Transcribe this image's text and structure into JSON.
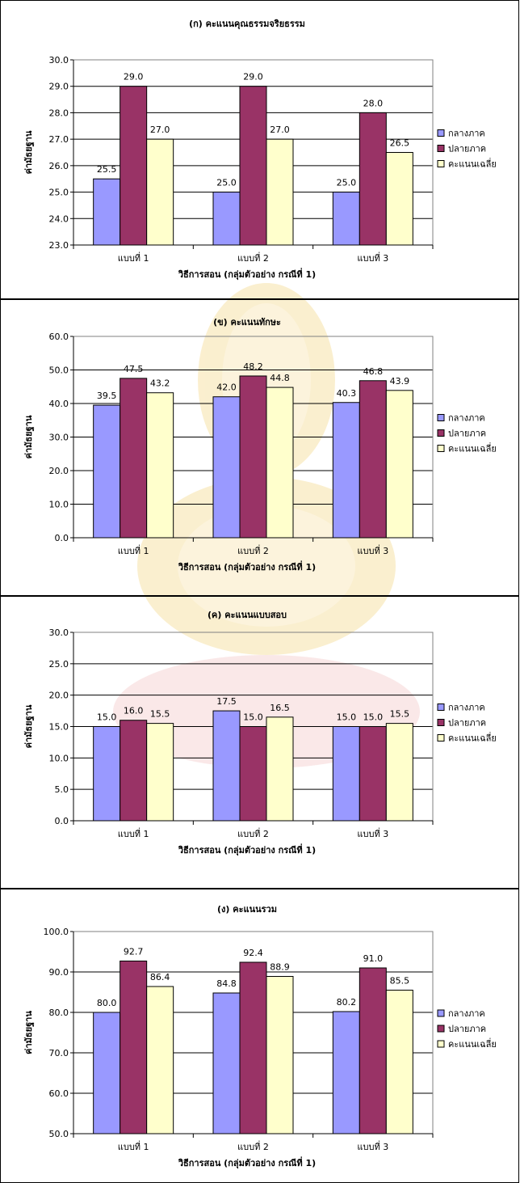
{
  "colors": {
    "series": [
      "#9999FF",
      "#993366",
      "#FFFFCC"
    ],
    "watermark": "#F7E2A8",
    "watermark_text": "#F8D8DC"
  },
  "chart_data": [
    {
      "type": "bar",
      "title": "(ก) คะแนนคุณธรรมจริยธรรม",
      "xlabel": "วิธีการสอน (กลุ่มตัวอย่าง กรณีที่ 1)",
      "ylabel": "ค่ามัธยฐาน",
      "categories": [
        "แบบที่ 1",
        "แบบที่ 2",
        "แบบที่ 3"
      ],
      "ylim": [
        23.0,
        30.0
      ],
      "ystep": 1.0,
      "yticks": [
        "23.0",
        "24.0",
        "25.0",
        "26.0",
        "27.0",
        "28.0",
        "29.0",
        "30.0"
      ],
      "legend": "right",
      "grid": true,
      "series": [
        {
          "name": "กลางภาค",
          "values": [
            25.5,
            25.0,
            25.0
          ],
          "labels": [
            "25.5",
            "25.0",
            "25.0"
          ]
        },
        {
          "name": "ปลายภาค",
          "values": [
            29.0,
            29.0,
            28.0
          ],
          "labels": [
            "29.0",
            "29.0",
            "28.0"
          ]
        },
        {
          "name": "คะแนนเฉลี่ย",
          "values": [
            27.0,
            27.0,
            26.5
          ],
          "labels": [
            "27.0",
            "27.0",
            "26.5"
          ]
        }
      ]
    },
    {
      "type": "bar",
      "title": "(ข) คะแนนทักษะ",
      "xlabel": "วิธีการสอน (กลุ่มตัวอย่าง กรณีที่ 1)",
      "ylabel": "ค่ามัธยฐาน",
      "categories": [
        "แบบที่ 1",
        "แบบที่ 2",
        "แบบที่ 3"
      ],
      "ylim": [
        0.0,
        60.0
      ],
      "ystep": 10.0,
      "yticks": [
        "0.0",
        "10.0",
        "20.0",
        "30.0",
        "40.0",
        "50.0",
        "60.0"
      ],
      "legend": "right",
      "grid": true,
      "series": [
        {
          "name": "กลางภาค",
          "values": [
            39.5,
            42.0,
            40.3
          ],
          "labels": [
            "39.5",
            "42.0",
            "40.3"
          ]
        },
        {
          "name": "ปลายภาค",
          "values": [
            47.5,
            48.2,
            46.8
          ],
          "labels": [
            "47.5",
            "48.2",
            "46.8"
          ]
        },
        {
          "name": "คะแนนเฉลี่ย",
          "values": [
            43.2,
            44.8,
            43.9
          ],
          "labels": [
            "43.2",
            "44.8",
            "43.9"
          ]
        }
      ]
    },
    {
      "type": "bar",
      "title": "(ค) คะแนนแบบสอบ",
      "xlabel": "วิธีการสอน (กลุ่มตัวอย่าง กรณีที่ 1)",
      "ylabel": "ค่ามัธยฐาน",
      "categories": [
        "แบบที่ 1",
        "แบบที่ 2",
        "แบบที่ 3"
      ],
      "ylim": [
        0.0,
        30.0
      ],
      "ystep": 5.0,
      "yticks": [
        "0.0",
        "5.0",
        "10.0",
        "15.0",
        "20.0",
        "25.0",
        "30.0"
      ],
      "legend": "right",
      "grid": true,
      "series": [
        {
          "name": "กลางภาค",
          "values": [
            15.0,
            17.5,
            15.0
          ],
          "labels": [
            "15.0",
            "17.5",
            "15.0"
          ]
        },
        {
          "name": "ปลายภาค",
          "values": [
            16.0,
            15.0,
            15.0
          ],
          "labels": [
            "16.0",
            "15.0",
            "15.0"
          ]
        },
        {
          "name": "คะแนนเฉลี่ย",
          "values": [
            15.5,
            16.5,
            15.5
          ],
          "labels": [
            "15.5",
            "16.5",
            "15.5"
          ]
        }
      ]
    },
    {
      "type": "bar",
      "title": "(ง) คะแนนรวม",
      "xlabel": "วิธีการสอน (กลุ่มตัวอย่าง กรณีที่ 1)",
      "ylabel": "ค่ามัธยฐาน",
      "categories": [
        "แบบที่ 1",
        "แบบที่ 2",
        "แบบที่ 3"
      ],
      "ylim": [
        50.0,
        100.0
      ],
      "ystep": 10.0,
      "yticks": [
        "50.0",
        "60.0",
        "70.0",
        "80.0",
        "90.0",
        "100.0"
      ],
      "legend": "right",
      "grid": true,
      "series": [
        {
          "name": "กลางภาค",
          "values": [
            80.0,
            84.8,
            80.2
          ],
          "labels": [
            "80.0",
            "84.8",
            "80.2"
          ]
        },
        {
          "name": "ปลายภาค",
          "values": [
            92.7,
            92.4,
            91.0
          ],
          "labels": [
            "92.7",
            "92.4",
            "91.0"
          ]
        },
        {
          "name": "คะแนนเฉลี่ย",
          "values": [
            86.4,
            88.9,
            85.5
          ],
          "labels": [
            "86.4",
            "88.9",
            "85.5"
          ]
        }
      ]
    }
  ]
}
